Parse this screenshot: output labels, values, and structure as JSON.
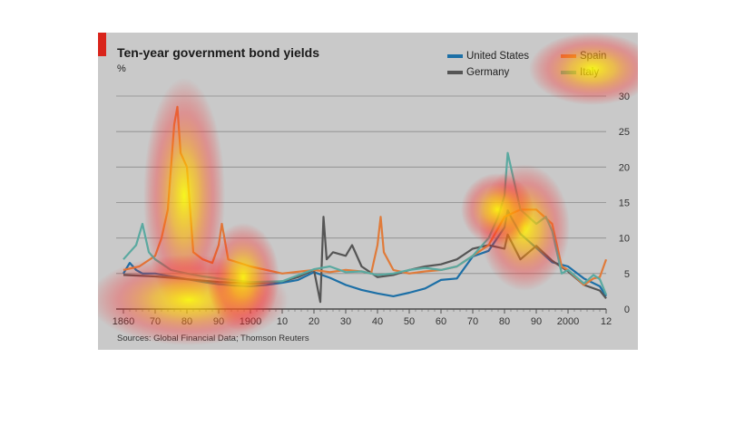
{
  "chart_data": {
    "type": "line",
    "title": "Ten-year government bond yields",
    "ylabel": "%",
    "source": "Sources: Global Financial Data; Thomson Reuters",
    "xlim": [
      1860,
      2012
    ],
    "ylim": [
      0,
      30
    ],
    "y_ticks": [
      0,
      5,
      10,
      15,
      20,
      25,
      30
    ],
    "x_tick_labels": [
      "1860",
      "70",
      "80",
      "90",
      "1900",
      "10",
      "20",
      "30",
      "40",
      "50",
      "60",
      "70",
      "80",
      "90",
      "2000",
      "12"
    ],
    "x_tick_values": [
      1860,
      1870,
      1880,
      1890,
      1900,
      1910,
      1920,
      1930,
      1940,
      1950,
      1960,
      1970,
      1980,
      1990,
      2000,
      2012
    ],
    "grid": true,
    "legend_position": "top-right",
    "colors": {
      "United States": "#1c6fa6",
      "Germany": "#555555",
      "Spain": "#e07b3a",
      "Italy": "#5aa9a0"
    },
    "series": [
      {
        "name": "United States",
        "x": [
          1860,
          1862,
          1864,
          1866,
          1870,
          1875,
          1880,
          1885,
          1890,
          1895,
          1900,
          1905,
          1910,
          1915,
          1920,
          1925,
          1930,
          1935,
          1940,
          1945,
          1950,
          1955,
          1960,
          1965,
          1970,
          1975,
          1980,
          1981,
          1982,
          1985,
          1990,
          1995,
          2000,
          2005,
          2010,
          2012
        ],
        "values": [
          5,
          6.5,
          5.5,
          5,
          5,
          4.6,
          4.2,
          3.8,
          3.5,
          3.3,
          3.2,
          3.4,
          3.7,
          4.1,
          5.2,
          4.4,
          3.4,
          2.7,
          2.2,
          1.8,
          2.3,
          2.9,
          4.1,
          4.3,
          7.4,
          8.2,
          11.5,
          13.9,
          13,
          10.6,
          8.6,
          6.6,
          6.0,
          4.3,
          3.2,
          1.8
        ]
      },
      {
        "name": "Germany",
        "x": [
          1860,
          1870,
          1875,
          1880,
          1890,
          1900,
          1910,
          1915,
          1920,
          1922,
          1923,
          1924,
          1926,
          1930,
          1932,
          1935,
          1940,
          1945,
          1950,
          1955,
          1960,
          1965,
          1970,
          1975,
          1980,
          1981,
          1985,
          1990,
          1995,
          2000,
          2005,
          2010,
          2012
        ],
        "values": [
          4.8,
          4.6,
          4.4,
          4.2,
          3.8,
          3.6,
          3.9,
          4.5,
          5.5,
          1,
          13,
          7,
          8,
          7.5,
          9,
          6,
          4.5,
          4.8,
          5.5,
          6,
          6.3,
          7,
          8.5,
          9,
          8.5,
          10.5,
          7,
          8.9,
          6.8,
          5.3,
          3.4,
          2.6,
          1.5
        ]
      },
      {
        "name": "Spain",
        "x": [
          1860,
          1865,
          1870,
          1872,
          1874,
          1875,
          1876,
          1877,
          1878,
          1880,
          1882,
          1885,
          1888,
          1890,
          1891,
          1893,
          1900,
          1910,
          1920,
          1925,
          1930,
          1935,
          1938,
          1940,
          1941,
          1942,
          1945,
          1950,
          1955,
          1960,
          1965,
          1970,
          1975,
          1980,
          1985,
          1990,
          1995,
          1998,
          2000,
          2005,
          2008,
          2010,
          2012
        ],
        "values": [
          5.5,
          6,
          7.5,
          10,
          14,
          20,
          26,
          28.5,
          22,
          20,
          8,
          7,
          6.5,
          9,
          12,
          7,
          6,
          5,
          5.5,
          5.2,
          5.5,
          5.3,
          5,
          9,
          13,
          8,
          5.5,
          5,
          5.3,
          5.5,
          6,
          7.5,
          9,
          13,
          14,
          14,
          12,
          6,
          5.5,
          3.4,
          4.3,
          4.5,
          7
        ]
      },
      {
        "name": "Italy",
        "x": [
          1860,
          1862,
          1864,
          1866,
          1868,
          1870,
          1875,
          1880,
          1885,
          1890,
          1900,
          1910,
          1920,
          1925,
          1930,
          1935,
          1940,
          1945,
          1950,
          1955,
          1960,
          1965,
          1970,
          1975,
          1978,
          1980,
          1981,
          1985,
          1990,
          1993,
          1995,
          1998,
          2000,
          2005,
          2008,
          2010,
          2012
        ],
        "values": [
          7,
          8,
          9,
          12,
          8,
          7,
          5.5,
          5,
          4.6,
          4.3,
          3.8,
          3.9,
          5.6,
          6,
          5.2,
          5.3,
          4.8,
          5,
          5.5,
          5.8,
          5.5,
          6,
          7.5,
          10,
          13,
          16,
          22,
          14,
          12,
          13,
          11,
          5,
          5.5,
          3.6,
          4.8,
          4.2,
          2
        ]
      }
    ]
  }
}
